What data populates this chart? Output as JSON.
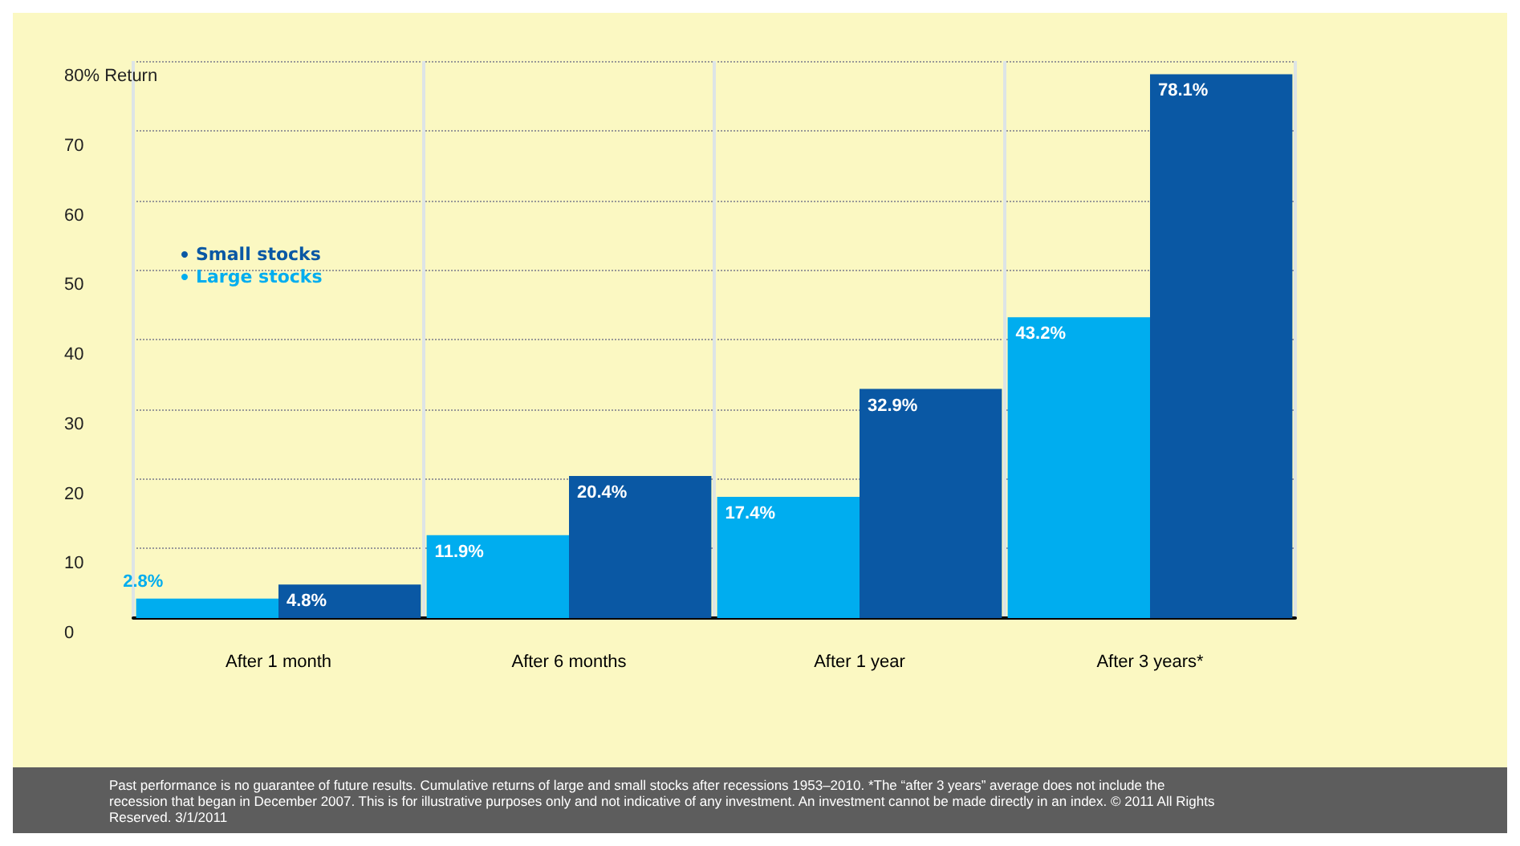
{
  "chart_data": {
    "type": "bar",
    "categories": [
      "After 1 month",
      "After 6 months",
      "After 1 year",
      "After 3 years*"
    ],
    "series": [
      {
        "name": "Large stocks",
        "color": "#00adef",
        "values": [
          2.8,
          11.9,
          17.4,
          43.2
        ],
        "value_labels": [
          "2.8%",
          "11.9%",
          "17.4%",
          "43.2%"
        ]
      },
      {
        "name": "Small stocks",
        "color": "#0a58a4",
        "values": [
          4.8,
          20.4,
          32.9,
          78.1
        ],
        "value_labels": [
          "4.8%",
          "20.4%",
          "32.9%",
          "78.1%"
        ]
      }
    ],
    "ylim": [
      0,
      80
    ],
    "yticks": [
      0,
      10,
      20,
      30,
      40,
      50,
      60,
      70,
      {
        "value": 80,
        "label": "80% Return"
      }
    ],
    "grid": true,
    "legend": "top left",
    "annotations": [
      "Past performance is no guarantee of future results. Cumulative returns of large and small stocks after recessions 1953–2010. *The “after 3 years” average does not include the recession that began in December 2007. This is for illustrative purposes only and not indicative of any investment. An investment cannot be made directly in an index. © 2011 All Rights Reserved. 3/1/2011"
    ]
  }
}
